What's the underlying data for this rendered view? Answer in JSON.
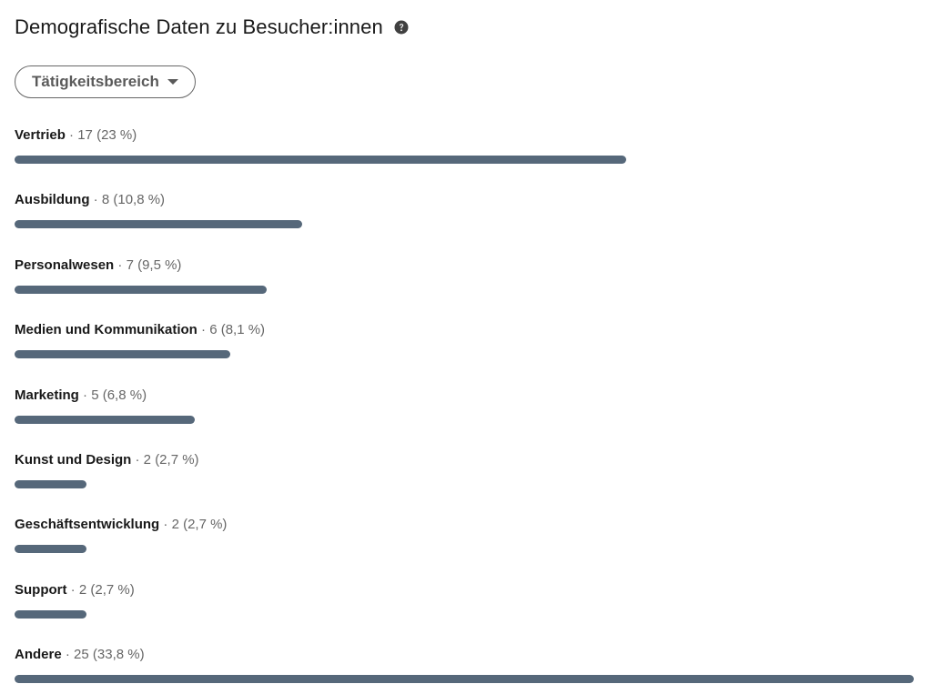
{
  "header": {
    "title": "Demografische Daten zu Besucher:innen",
    "help_icon": "question-circle-icon"
  },
  "filter": {
    "label": "Tätigkeitsbereich",
    "icon": "caret-down-icon"
  },
  "colors": {
    "bar": "#56687a",
    "text_primary": "#191919",
    "text_secondary": "#666666"
  },
  "items": [
    {
      "name": "Vertrieb",
      "count": "17",
      "percent": "(23 %)",
      "fraction": 0.68
    },
    {
      "name": "Ausbildung",
      "count": "8",
      "percent": "(10,8 %)",
      "fraction": 0.32
    },
    {
      "name": "Personalwesen",
      "count": "7",
      "percent": "(9,5 %)",
      "fraction": 0.28
    },
    {
      "name": "Medien und Kommunikation",
      "count": "6",
      "percent": "(8,1 %)",
      "fraction": 0.24
    },
    {
      "name": "Marketing",
      "count": "5",
      "percent": "(6,8 %)",
      "fraction": 0.2
    },
    {
      "name": "Kunst und Design",
      "count": "2",
      "percent": "(2,7 %)",
      "fraction": 0.08
    },
    {
      "name": "Geschäftsentwicklung",
      "count": "2",
      "percent": "(2,7 %)",
      "fraction": 0.08
    },
    {
      "name": "Support",
      "count": "2",
      "percent": "(2,7 %)",
      "fraction": 0.08
    },
    {
      "name": "Andere",
      "count": "25",
      "percent": "(33,8 %)",
      "fraction": 1.0
    }
  ]
}
